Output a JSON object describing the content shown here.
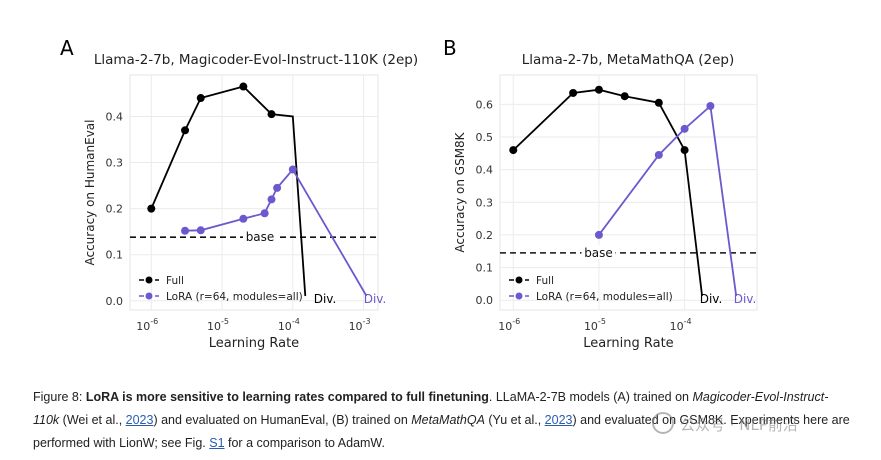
{
  "chart_data": [
    {
      "panel_letter": "A",
      "type": "line",
      "title": "Llama-2-7b, Magicoder-Evol-Instruct-110K (2ep)",
      "xlabel": "Learning Rate",
      "ylabel": "Accuracy on HumanEval",
      "xscale": "log",
      "xlim": [
        5e-07,
        0.0016
      ],
      "ylim": [
        -0.02,
        0.49
      ],
      "xticks": [
        1e-06,
        1e-05,
        0.0001,
        0.001
      ],
      "xtick_labels": [
        "10^-6",
        "10^-5",
        "10^-4",
        "10^-3"
      ],
      "yticks": [
        0.0,
        0.1,
        0.2,
        0.3,
        0.4
      ],
      "ytick_labels": [
        "0.0",
        "0.1",
        "0.2",
        "0.3",
        "0.4"
      ],
      "grid": true,
      "legend": "bottom-left",
      "baseline": {
        "label": "base",
        "value": 0.138
      },
      "series": [
        {
          "name": "Full",
          "color": "#000000",
          "x": [
            1e-06,
            3e-06,
            5e-06,
            2e-05,
            5e-05,
            0.0001
          ],
          "y": [
            0.2,
            0.37,
            0.44,
            0.465,
            0.405,
            0.4
          ],
          "points": [
            true,
            true,
            true,
            true,
            true,
            false
          ],
          "diverged_at": 0.00015,
          "div_label": "Div."
        },
        {
          "name": "LoRA (r=64, modules=all)",
          "color": "#6a5acd",
          "x": [
            3e-06,
            5e-06,
            2e-05,
            4e-05,
            5e-05,
            6e-05,
            0.0001
          ],
          "y": [
            0.152,
            0.153,
            0.178,
            0.19,
            0.22,
            0.245,
            0.285
          ],
          "diverged_at": 0.0011,
          "div_label": "Div."
        }
      ]
    },
    {
      "panel_letter": "B",
      "type": "line",
      "title": "Llama-2-7b, MetaMathQA (2ep)",
      "xlabel": "Learning Rate",
      "ylabel": "Accuracy on GSM8K",
      "xscale": "log",
      "xlim": [
        7e-07,
        0.0007
      ],
      "ylim": [
        -0.03,
        0.69
      ],
      "xticks": [
        1e-06,
        1e-05,
        0.0001
      ],
      "xtick_labels": [
        "10^-6",
        "10^-5",
        "10^-4"
      ],
      "yticks": [
        0.0,
        0.1,
        0.2,
        0.3,
        0.4,
        0.5,
        0.6
      ],
      "ytick_labels": [
        "0.0",
        "0.1",
        "0.2",
        "0.3",
        "0.4",
        "0.5",
        "0.6"
      ],
      "grid": true,
      "legend": "bottom-left",
      "baseline": {
        "label": "base",
        "value": 0.145
      },
      "series": [
        {
          "name": "Full",
          "color": "#000000",
          "x": [
            1e-06,
            5e-06,
            1e-05,
            2e-05,
            5e-05,
            0.0001
          ],
          "y": [
            0.46,
            0.635,
            0.645,
            0.625,
            0.605,
            0.46
          ],
          "diverged_at": 0.00016,
          "div_label": "Div."
        },
        {
          "name": "LoRA (r=64, modules=all)",
          "color": "#6a5acd",
          "x": [
            1e-05,
            5e-05,
            0.0001,
            0.0002
          ],
          "y": [
            0.2,
            0.445,
            0.525,
            0.595
          ],
          "diverged_at": 0.0004,
          "div_label": "Div."
        }
      ]
    }
  ],
  "caption": {
    "prefix": "Figure 8: ",
    "bold": "LoRA is more sensitive to learning rates compared to full finetuning",
    "t1": ". LLaMA-2-7B models (A) trained on ",
    "i1": "Magicoder-Evol-Instruct-110k",
    "t2": " (Wei et al., ",
    "l1": "2023",
    "t3": ") and evaluated on HumanEval, (B) trained on ",
    "i2": "MetaMathQA",
    "t4": " (Yu et al., ",
    "l2": "2023",
    "t5": ") and evaluated on GSM8K. Experiments here are performed with LionW; see Fig. ",
    "l3": "S1",
    "t6": " for a comparison to AdamW."
  },
  "watermark": "公众号 · NLP前沿"
}
